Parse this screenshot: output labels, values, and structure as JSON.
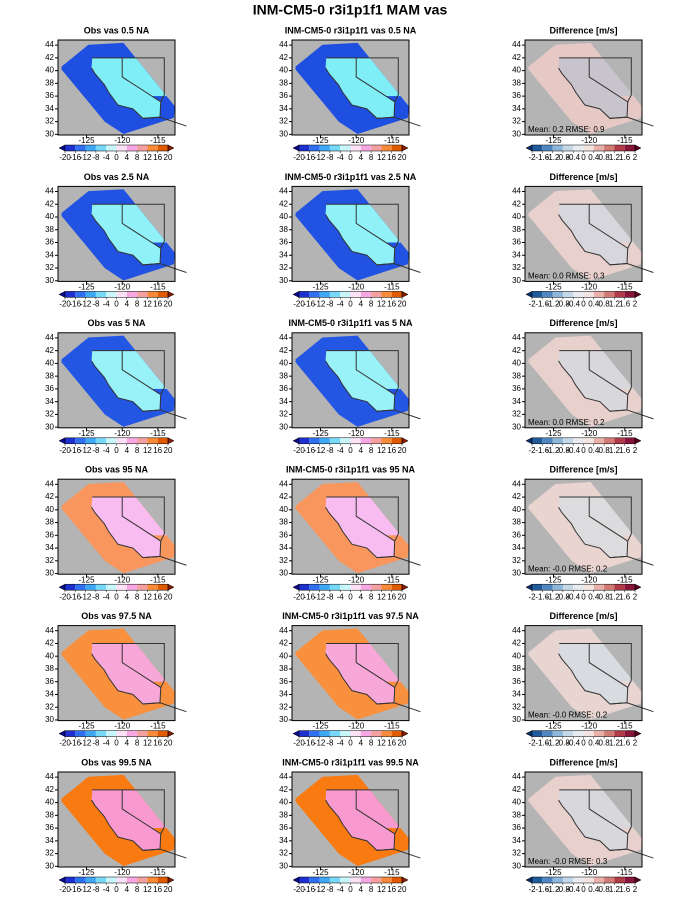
{
  "title": "INM-CM5-0 r3i1p1f1 MAM vas",
  "lon_lim": [
    -129,
    -112.6
  ],
  "lat_lim": [
    29.9,
    44.8
  ],
  "lon_ticks": [
    -125,
    -120,
    -115
  ],
  "lat_ticks": [
    30,
    32,
    34,
    36,
    38,
    40,
    42,
    44
  ],
  "colorbars": {
    "abs": {
      "ticks": [
        -20,
        -16,
        -12,
        -8,
        -4,
        0,
        4,
        8,
        12,
        16,
        20
      ],
      "colors": [
        "#0a0a8c",
        "#1e2fd0",
        "#2f6ff0",
        "#3fa8f5",
        "#78d8f8",
        "#c8f6fb",
        "#fde2f6",
        "#f7a8e4",
        "#f4a0a0",
        "#f88a3a",
        "#e05a00",
        "#8b1a00"
      ]
    },
    "diff": {
      "ticks": [
        -2,
        -1.6,
        -1.2,
        -0.8,
        -0.4,
        0,
        0.4,
        0.8,
        1.2,
        1.6,
        2
      ],
      "colors": [
        "#08306b",
        "#1f5a9c",
        "#4f86bf",
        "#8db6d8",
        "#c4d8e8",
        "#e8ecf0",
        "#f2e4e0",
        "#e8b0a8",
        "#d27a74",
        "#b03a48",
        "#88143a",
        "#5a0024"
      ]
    }
  },
  "panels": [
    {
      "title": "Obs vas 0.5 NA",
      "colorbar": "abs",
      "land": "#80eef6",
      "ocean": "#1e4fe0"
    },
    {
      "title": "INM-CM5-0 r3i1p1f1 vas 0.5 NA",
      "colorbar": "abs",
      "land": "#80eef6",
      "ocean": "#1e4fe0"
    },
    {
      "title": "Difference [m/s]",
      "colorbar": "diff",
      "land": "#c8c4cc",
      "ocean": "#e6c8c4",
      "stats": "Mean: 0.2  RMSE: 0.9"
    },
    {
      "title": "Obs vas 2.5 NA",
      "colorbar": "abs",
      "land": "#90f2f8",
      "ocean": "#2152e2"
    },
    {
      "title": "INM-CM5-0 r3i1p1f1 vas 2.5 NA",
      "colorbar": "abs",
      "land": "#90f2f8",
      "ocean": "#2152e2"
    },
    {
      "title": "Difference [m/s]",
      "colorbar": "diff",
      "land": "#d6d6dc",
      "ocean": "#e8d0cc",
      "stats": "Mean: 0.0  RMSE: 0.3"
    },
    {
      "title": "Obs vas 5 NA",
      "colorbar": "abs",
      "land": "#98f2f8",
      "ocean": "#2456e4"
    },
    {
      "title": "INM-CM5-0 r3i1p1f1 vas 5 NA",
      "colorbar": "abs",
      "land": "#98f2f8",
      "ocean": "#2456e4"
    },
    {
      "title": "Difference [m/s]",
      "colorbar": "diff",
      "land": "#d8d8dc",
      "ocean": "#e8d0cc",
      "stats": "Mean: 0.0  RMSE: 0.2"
    },
    {
      "title": "Obs vas 95 NA",
      "colorbar": "abs",
      "land": "#f8bcf0",
      "ocean": "#f8965e"
    },
    {
      "title": "INM-CM5-0 r3i1p1f1 vas 95 NA",
      "colorbar": "abs",
      "land": "#f8bcf0",
      "ocean": "#f8965e"
    },
    {
      "title": "Difference [m/s]",
      "colorbar": "diff",
      "land": "#dcdcde",
      "ocean": "#ead4d0",
      "stats": "Mean: -0.0  RMSE: 0.2"
    },
    {
      "title": "Obs vas 97.5 NA",
      "colorbar": "abs",
      "land": "#f8a8d8",
      "ocean": "#f8903e"
    },
    {
      "title": "INM-CM5-0 r3i1p1f1 vas 97.5 NA",
      "colorbar": "abs",
      "land": "#f8a8d8",
      "ocean": "#f8903e"
    },
    {
      "title": "Difference [m/s]",
      "colorbar": "diff",
      "land": "#d8dce0",
      "ocean": "#e8d4d0",
      "stats": "Mean: -0.0  RMSE: 0.2"
    },
    {
      "title": "Obs vas 99.5 NA",
      "colorbar": "abs",
      "land": "#f89ad0",
      "ocean": "#f87a10"
    },
    {
      "title": "INM-CM5-0 r3i1p1f1 vas 99.5 NA",
      "colorbar": "abs",
      "land": "#f89ad0",
      "ocean": "#f87a10"
    },
    {
      "title": "Difference [m/s]",
      "colorbar": "diff",
      "land": "#d8d8dc",
      "ocean": "#e8d0cc",
      "stats": "Mean: -0.0  RMSE: 0.3"
    }
  ]
}
